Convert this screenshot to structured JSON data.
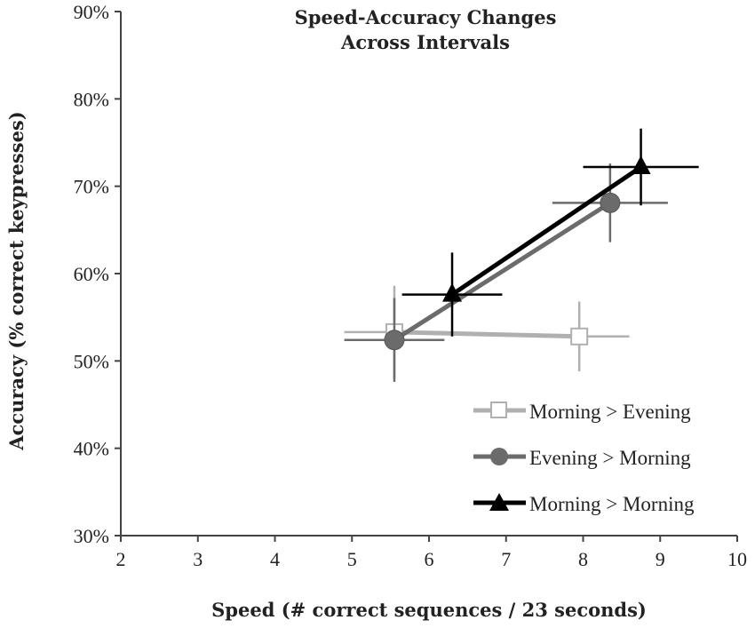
{
  "chart_data": {
    "type": "line",
    "title_lines": [
      "Speed-Accuracy Changes",
      "Across Intervals"
    ],
    "xlabel": "Speed (# correct sequences / 23 seconds)",
    "ylabel": "Accuracy (% correct keypresses)",
    "xlim": [
      2,
      10
    ],
    "ylim": [
      30,
      90
    ],
    "x_ticks": [
      2,
      3,
      4,
      5,
      6,
      7,
      8,
      9,
      10
    ],
    "y_ticks": [
      30,
      40,
      50,
      60,
      70,
      80,
      90
    ],
    "x_tick_labels": [
      "2",
      "3",
      "4",
      "5",
      "6",
      "7",
      "8",
      "9",
      "10"
    ],
    "y_tick_labels": [
      "30%",
      "40%",
      "50%",
      "60%",
      "70%",
      "80%",
      "90%"
    ],
    "legend_position": "bottom-right",
    "series": [
      {
        "name": "Morning > Evening",
        "marker": "square",
        "color": "#b0b0b0",
        "marker_fill": "#ffffff",
        "points": [
          {
            "x": 5.55,
            "y": 53.3,
            "xerr": 0.65,
            "yerr": 5.3
          },
          {
            "x": 7.95,
            "y": 52.8,
            "xerr": 0.65,
            "yerr": 4.0
          }
        ]
      },
      {
        "name": "Evening > Morning",
        "marker": "circle",
        "color": "#6b6b6b",
        "marker_fill": "#6b6b6b",
        "points": [
          {
            "x": 5.55,
            "y": 52.4,
            "xerr": 0.65,
            "yerr": 4.8
          },
          {
            "x": 8.35,
            "y": 68.1,
            "xerr": 0.75,
            "yerr": 4.5
          }
        ]
      },
      {
        "name": "Morning > Morning",
        "marker": "triangle",
        "color": "#000000",
        "marker_fill": "#000000",
        "points": [
          {
            "x": 6.3,
            "y": 57.6,
            "xerr": 0.65,
            "yerr": 4.8
          },
          {
            "x": 8.75,
            "y": 72.2,
            "xerr": 0.75,
            "yerr": 4.4
          }
        ]
      }
    ]
  }
}
